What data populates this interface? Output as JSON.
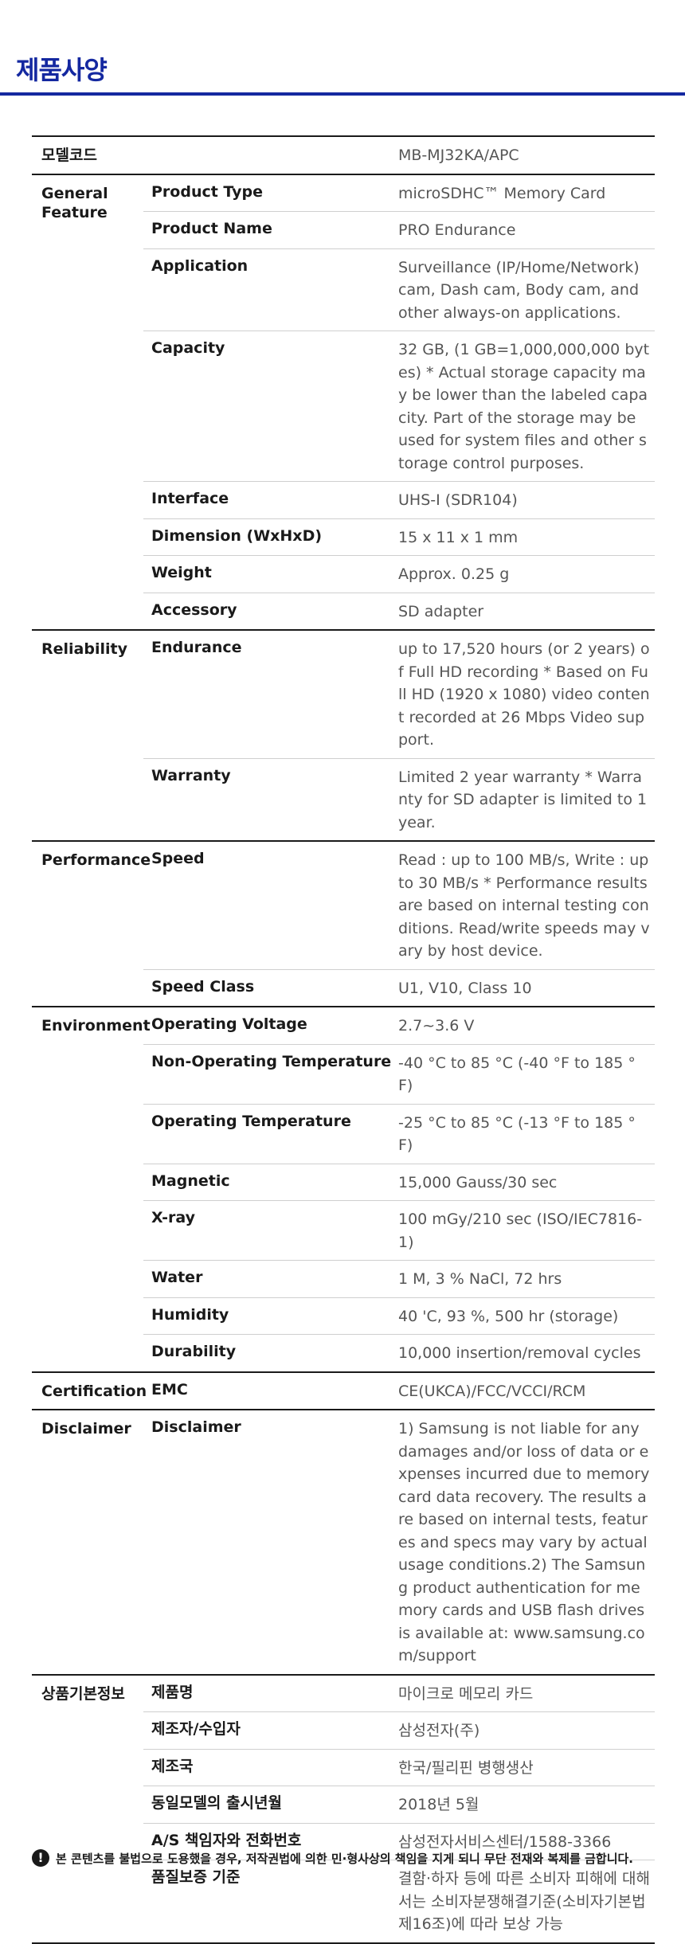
{
  "title": "제품사양",
  "groups": [
    {
      "category": "모델코드",
      "rows": [
        {
          "label": "",
          "value": "MB-MJ32KA/APC"
        }
      ]
    },
    {
      "category": "General Feature",
      "rows": [
        {
          "label": "Product Type",
          "value": "microSDHC™ Memory Card"
        },
        {
          "label": "Product Name",
          "value": "PRO Endurance"
        },
        {
          "label": "Application",
          "value": "Surveillance (IP/Home/Network) cam, Dash cam, Body cam, and other always-on applications."
        },
        {
          "label": "Capacity",
          "value": "32 GB, (1 GB=1,000,000,000 bytes) * Actual storage capacity may be lower than the labeled capacity. Part of the storage may be used for system files and other storage control purposes."
        },
        {
          "label": "Interface",
          "value": "UHS-I (SDR104)"
        },
        {
          "label": "Dimension (WxHxD)",
          "value": "15 x 11 x 1 mm"
        },
        {
          "label": "Weight",
          "value": "Approx. 0.25 g"
        },
        {
          "label": "Accessory",
          "value": "SD adapter"
        }
      ]
    },
    {
      "category": "Reliability",
      "rows": [
        {
          "label": "Endurance",
          "value": "up to 17,520 hours (or 2 years) of Full HD recording * Based on Full HD (1920 x 1080) video content recorded at 26 Mbps Video support."
        },
        {
          "label": "Warranty",
          "value": "Limited 2 year warranty * Warranty for SD adapter is limited to 1 year."
        }
      ]
    },
    {
      "category": "Performance",
      "rows": [
        {
          "label": "Speed",
          "value": "Read : up to 100 MB/s, Write : up to 30 MB/s * Performance results are based on internal testing conditions. Read/write speeds may vary by host device."
        },
        {
          "label": "Speed Class",
          "value": "U1, V10, Class 10"
        }
      ]
    },
    {
      "category": "Environment",
      "rows": [
        {
          "label": "Operating Voltage",
          "value": "2.7~3.6 V"
        },
        {
          "label": "Non-Operating Temperature",
          "value": "-40 °C to 85 °C (-40 °F to 185 °F)"
        },
        {
          "label": "Operating Temperature",
          "value": "-25 °C to 85 °C (-13 °F to 185 °F)"
        },
        {
          "label": "Magnetic",
          "value": "15,000 Gauss/30 sec"
        },
        {
          "label": "X-ray",
          "value": "100 mGy/210 sec (ISO/IEC7816-1)"
        },
        {
          "label": "Water",
          "value": "1 M, 3 % NaCl, 72 hrs"
        },
        {
          "label": "Humidity",
          "value": "40 'C, 93 %, 500 hr (storage)"
        },
        {
          "label": "Durability",
          "value": "10,000 insertion/removal cycles"
        }
      ]
    },
    {
      "category": "Certification",
      "rows": [
        {
          "label": "EMC",
          "value": "CE(UKCA)/FCC/VCCI/RCM"
        }
      ]
    },
    {
      "category": "Disclaimer",
      "rows": [
        {
          "label": "Disclaimer",
          "value": "1) Samsung is not liable for any damages and/or loss of data or expenses incurred due to memory card data recovery. The results are based on internal tests, features and specs may vary by actual usage conditions.2) The Samsung product authentication for memory cards and USB flash drives is available at: www.samsung.com/support"
        }
      ]
    },
    {
      "category": "상품기본정보",
      "rows": [
        {
          "label": "제품명",
          "value": "마이크로 메모리 카드"
        },
        {
          "label": "제조자/수입자",
          "value": "삼성전자(주)"
        },
        {
          "label": "제조국",
          "value": "한국/필리핀 병행생산"
        },
        {
          "label": "동일모델의 출시년월",
          "value": "2018년 5월"
        },
        {
          "label": "A/S 책임자와 전화번호",
          "value": "삼성전자서비스센터/1588-3366"
        },
        {
          "label": "품질보증 기준",
          "value": "결함·하자 등에 따른 소비자 피해에 대해서는 소비자분쟁해결기준(소비자기본법 제16조)에 따라 보상 가능"
        }
      ]
    }
  ],
  "notice": {
    "icon": "exclamation-icon",
    "text": "본 콘텐츠를 불법으로 도용했을 경우, 저작권법에 의한 민·형사상의 책임을 지게 되니 무단 전재와 복제를 금합니다."
  }
}
